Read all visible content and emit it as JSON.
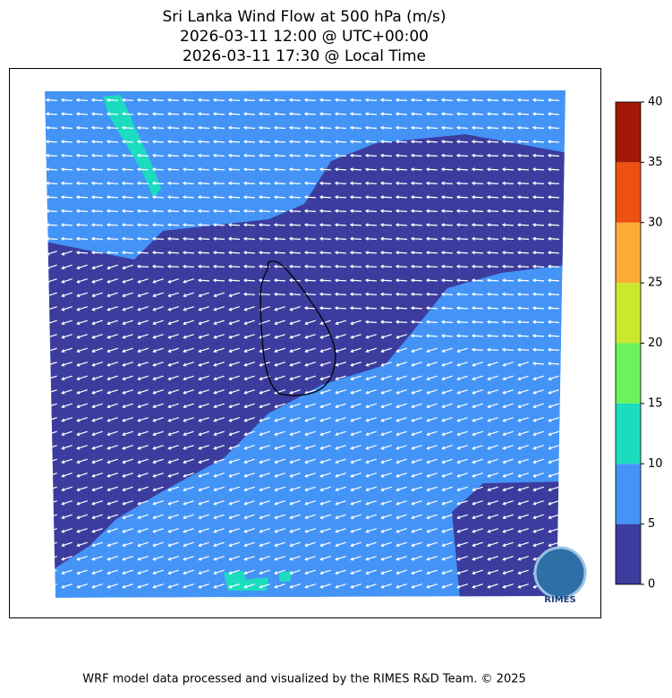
{
  "title": [
    "Sri Lanka Wind Flow at 500 hPa (m/s)",
    "2026-03-11 12:00 @ UTC+00:00",
    "2026-03-11 17:30 @ Local Time"
  ],
  "colorbar": {
    "ticks": [
      0,
      5,
      10,
      15,
      20,
      25,
      30,
      35,
      40
    ],
    "colors": [
      "#3c3c9e",
      "#4394f6",
      "#1bdcbf",
      "#6cf25b",
      "#cbe82f",
      "#fbac34",
      "#ee5011",
      "#a21806"
    ]
  },
  "logo": "RIMES",
  "footer": "WRF model data processed and visualized by the RIMES R&D Team. © 2025"
}
